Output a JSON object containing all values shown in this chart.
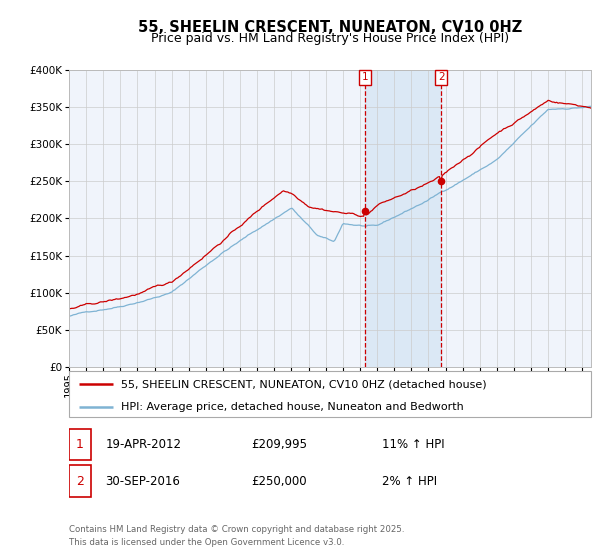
{
  "title": "55, SHEELIN CRESCENT, NUNEATON, CV10 0HZ",
  "subtitle": "Price paid vs. HM Land Registry's House Price Index (HPI)",
  "red_label": "55, SHEELIN CRESCENT, NUNEATON, CV10 0HZ (detached house)",
  "blue_label": "HPI: Average price, detached house, Nuneaton and Bedworth",
  "annotation1_date": "19-APR-2012",
  "annotation1_price": "£209,995",
  "annotation1_hpi": "11% ↑ HPI",
  "annotation2_date": "30-SEP-2016",
  "annotation2_price": "£250,000",
  "annotation2_hpi": "2% ↑ HPI",
  "footnote1": "Contains HM Land Registry data © Crown copyright and database right 2025.",
  "footnote2": "This data is licensed under the Open Government Licence v3.0.",
  "ylim": [
    0,
    400000
  ],
  "yticks": [
    0,
    50000,
    100000,
    150000,
    200000,
    250000,
    300000,
    350000,
    400000
  ],
  "xlim_start": 1995.0,
  "xlim_end": 2025.5,
  "t1_year": 2012.292,
  "t2_year": 2016.75,
  "red_color": "#cc0000",
  "blue_color": "#7fb3d3",
  "grid_color": "#cccccc",
  "bg_color": "#f0f4fb",
  "vspan_color": "#dbe8f5",
  "title_fontsize": 10.5,
  "subtitle_fontsize": 9,
  "tick_fontsize": 7.5,
  "legend_fontsize": 8,
  "table_fontsize": 8.5
}
